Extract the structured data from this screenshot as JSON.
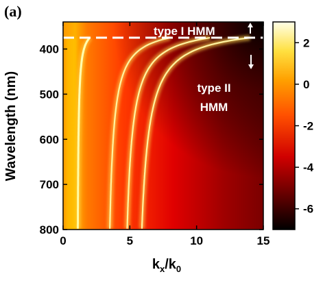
{
  "chart_data": {
    "type": "heatmap",
    "panel_label": "(a)",
    "x": {
      "label_main": "k",
      "label_sub1": "x",
      "label_mid": "/k",
      "label_sub2": "0",
      "range": [
        0,
        15
      ],
      "ticks": [
        0,
        5,
        10,
        15
      ]
    },
    "y": {
      "label": "Wavelength (nm)",
      "range": [
        340,
        800
      ],
      "inverted": true,
      "ticks": [
        400,
        500,
        600,
        700,
        800
      ]
    },
    "colorbar": {
      "range": [
        -7,
        3
      ],
      "ticks": [
        2,
        0,
        -2,
        -4,
        -6
      ],
      "colormap": "hot",
      "stops": [
        "#000000",
        "#8b0000",
        "#ff0000",
        "#ff8c00",
        "#ffd700",
        "#ffff99",
        "#ffffff"
      ]
    },
    "boundary": {
      "wavelength_nm": 375,
      "style": "dashed",
      "color": "#ffffff"
    },
    "annotations": [
      {
        "text": "type I HMM",
        "arrow": "up"
      },
      {
        "text": "type II",
        "text2": "HMM",
        "arrow": "down"
      }
    ],
    "ridges": [
      {
        "k_asymptote": 1.1,
        "k_at_375": 2.0
      },
      {
        "k_asymptote": 3.5,
        "k_at_375": 8.0
      },
      {
        "k_asymptote": 4.8,
        "k_at_375": 11.0
      },
      {
        "k_asymptote": 5.9,
        "k_at_375": 14.0
      }
    ],
    "grid": false
  }
}
